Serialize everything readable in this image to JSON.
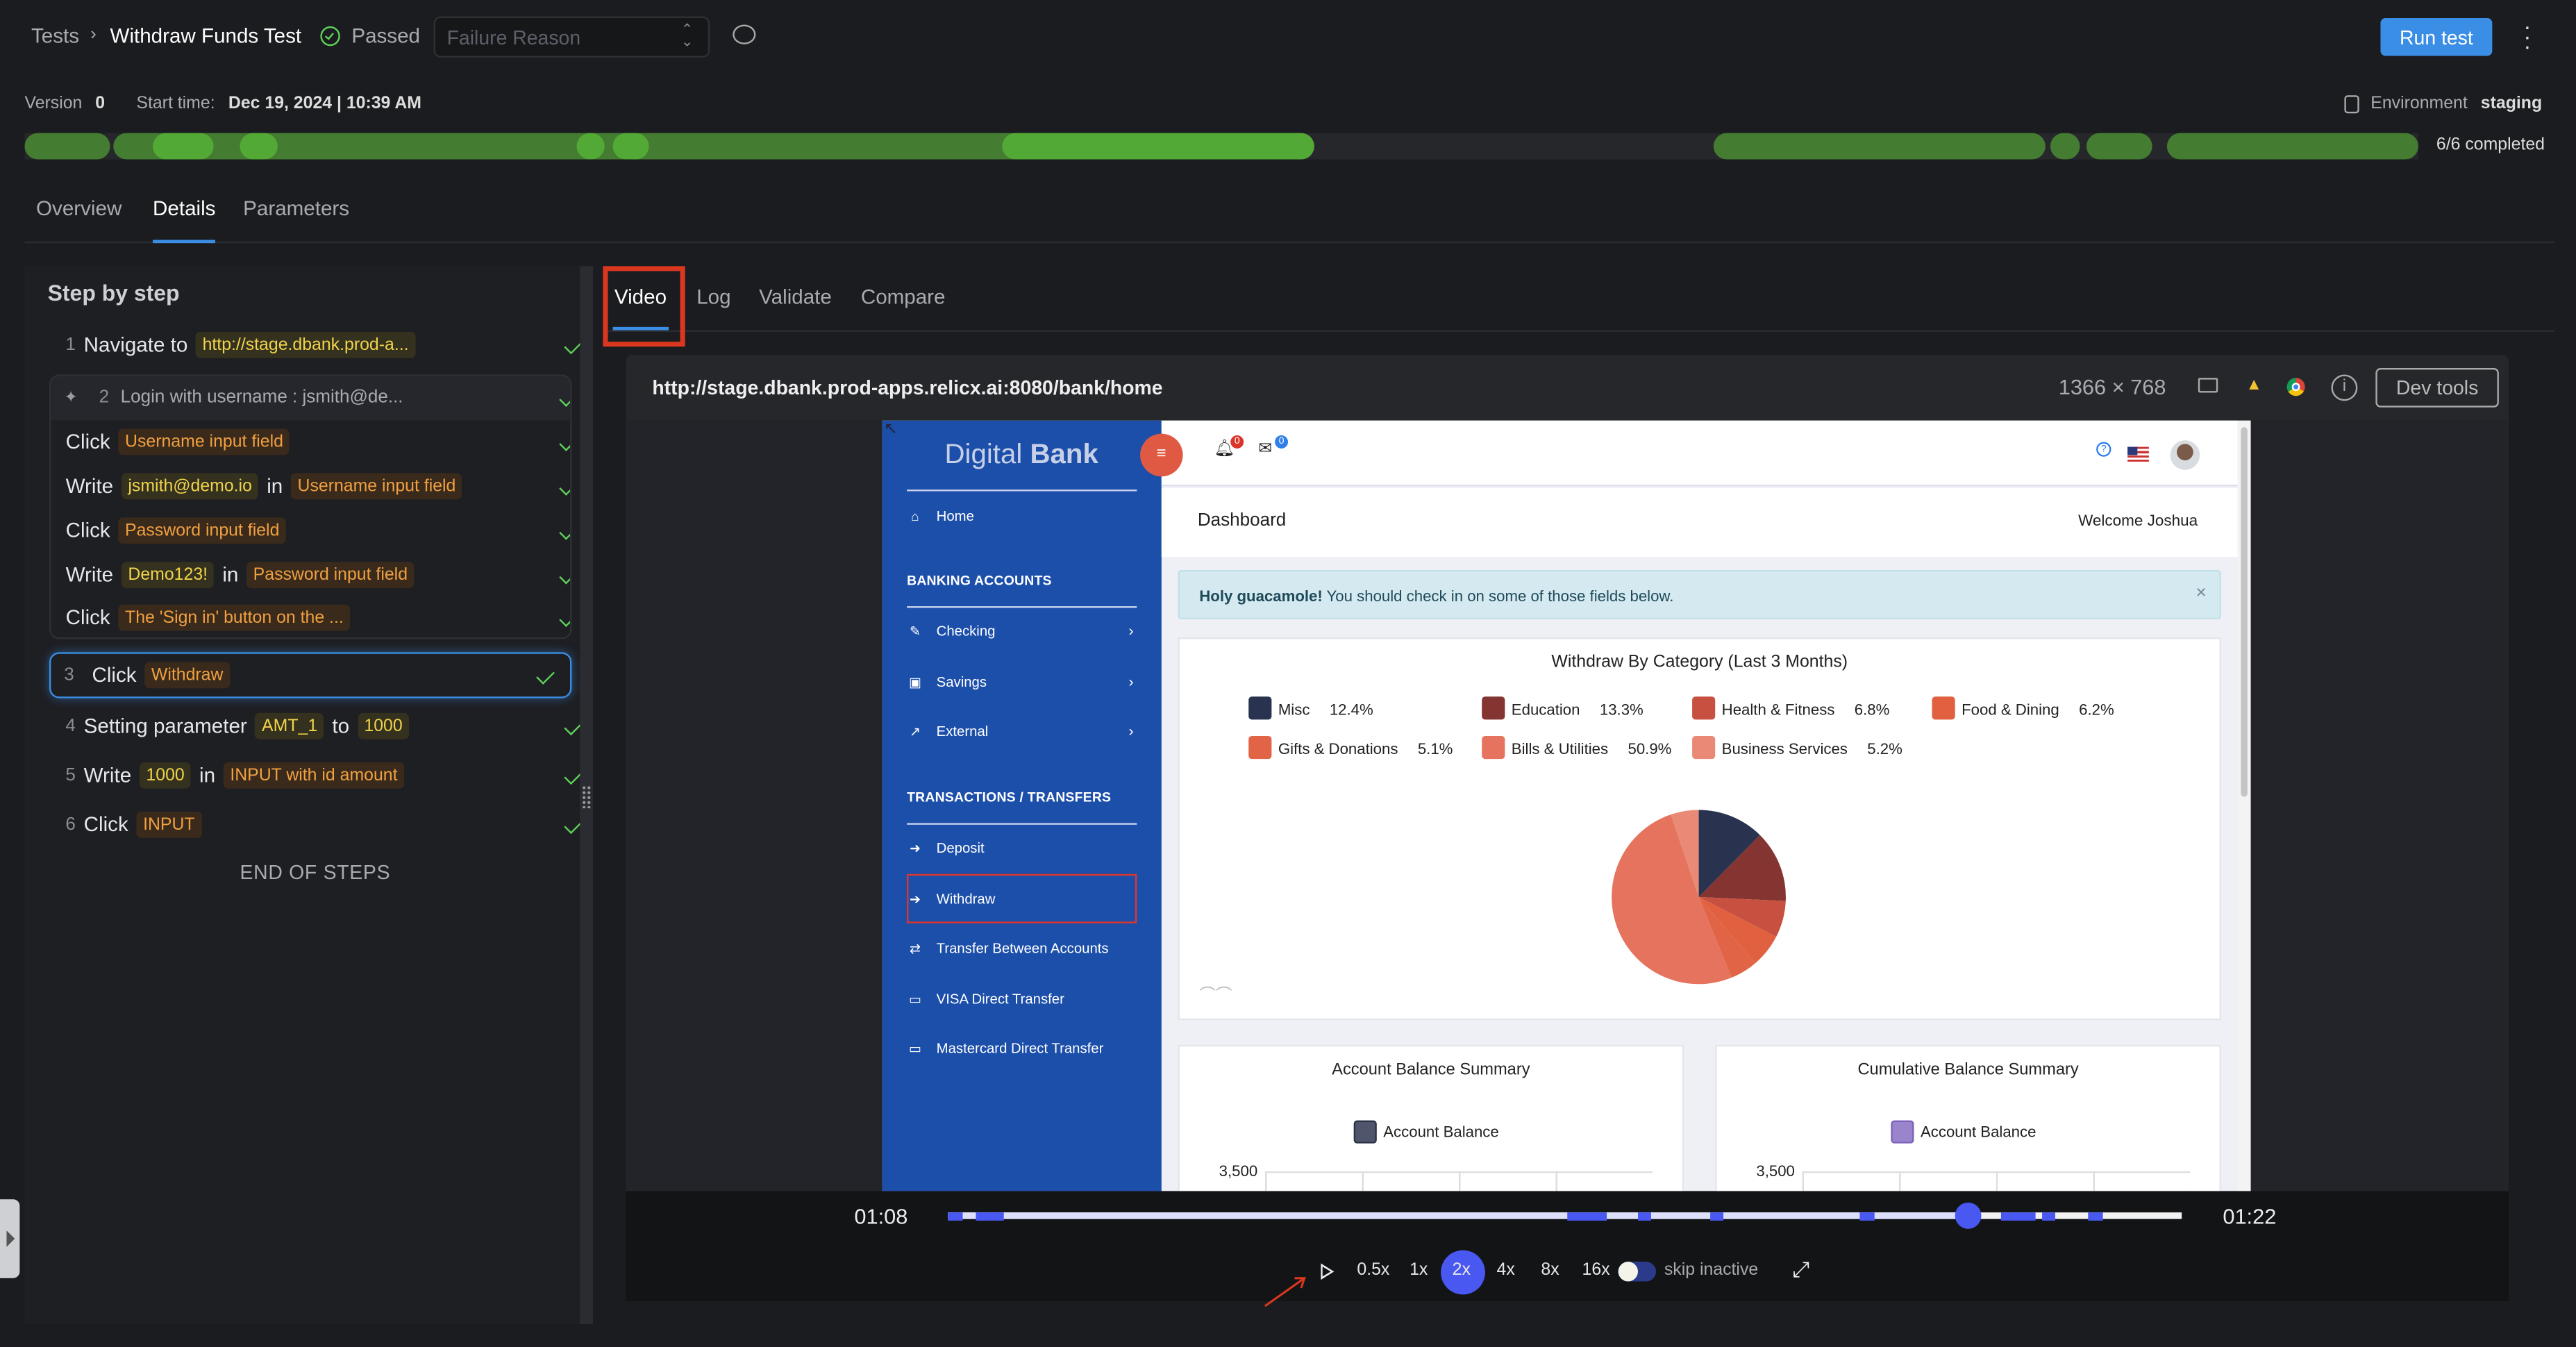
{
  "header": {
    "breadcrumb_root": "Tests",
    "test_name": "Withdraw Funds Test",
    "status": "Passed",
    "failure_reason_placeholder": "Failure Reason",
    "run_button": "Run test",
    "version_label": "Version",
    "version_value": "0",
    "start_label": "Start time:",
    "start_value": "Dec 19, 2024 | 10:39 AM",
    "environment_label": "Environment",
    "environment_value": "staging",
    "completed": "6/6 completed"
  },
  "main_tabs": [
    "Overview",
    "Details",
    "Parameters"
  ],
  "active_main_tab": "Details",
  "steps": {
    "title": "Step by step",
    "s1": {
      "num": "1",
      "verb": "Navigate to",
      "arg": "http://stage.dbank.prod-a..."
    },
    "s2": {
      "num": "2",
      "label": "Login with username : jsmith@de...",
      "sub": [
        {
          "verb": "Click",
          "target": "Username input field"
        },
        {
          "verb": "Write",
          "value": "jsmith@demo.io",
          "in": "in",
          "target": "Username input field"
        },
        {
          "verb": "Click",
          "target": "Password input field"
        },
        {
          "verb": "Write",
          "value": "Demo123!",
          "in": "in",
          "target": "Password input field"
        },
        {
          "verb": "Click",
          "target": "The 'Sign in' button on the ..."
        }
      ]
    },
    "s3": {
      "num": "3",
      "verb": "Click",
      "target": "Withdraw"
    },
    "s4": {
      "num": "4",
      "verb": "Setting parameter",
      "param": "AMT_1",
      "to": "to",
      "value": "1000"
    },
    "s5": {
      "num": "5",
      "verb": "Write",
      "value": "1000",
      "in": "in",
      "target": "INPUT with id amount"
    },
    "s6": {
      "num": "6",
      "verb": "Click",
      "target": "INPUT"
    },
    "end": "END OF STEPS"
  },
  "viewer_tabs": [
    "Video",
    "Log",
    "Validate",
    "Compare"
  ],
  "active_viewer_tab": "Video",
  "browser": {
    "url": "http://stage.dbank.prod-apps.relicx.ai:8080/bank/home",
    "resolution": "1366 × 768",
    "devtools": "Dev tools"
  },
  "app": {
    "logo_light": "Digital",
    "logo_bold": "Bank",
    "bell_count": "0",
    "mail_count": "0",
    "sidebar": {
      "home": "Home",
      "banking_heading": "BANKING ACCOUNTS",
      "checking": "Checking",
      "savings": "Savings",
      "external": "External",
      "transactions_heading": "TRANSACTIONS / TRANSFERS",
      "deposit": "Deposit",
      "withdraw": "Withdraw",
      "transfer": "Transfer Between Accounts",
      "visa": "VISA Direct Transfer",
      "mastercard": "Mastercard Direct Transfer"
    },
    "page_title": "Dashboard",
    "welcome": "Welcome Joshua",
    "alert_bold": "Holy guacamole!",
    "alert_text": "You should check in on some of those fields below.",
    "account_balance_title": "Account Balance Summary",
    "cumulative_title": "Cumulative Balance Summary",
    "balance_legend": "Account Balance",
    "balance_tick": "3,500",
    "balance_colors": {
      "account": "#4f566b",
      "cumulative": "#9a84cc"
    }
  },
  "chart_data": {
    "type": "pie",
    "title": "Withdraw By Category (Last 3 Months)",
    "legend_placement": "top",
    "slices": [
      {
        "label": "Misc",
        "value": 12.4,
        "display": "12.4%",
        "color": "#29334f"
      },
      {
        "label": "Education",
        "value": 13.3,
        "display": "13.3%",
        "color": "#843431"
      },
      {
        "label": "Health & Fitness",
        "value": 6.8,
        "display": "6.8%",
        "color": "#c75040"
      },
      {
        "label": "Food & Dining",
        "value": 6.2,
        "display": "6.2%",
        "color": "#e0603f"
      },
      {
        "label": "Gifts & Donations",
        "value": 5.1,
        "display": "5.1%",
        "color": "#e26446"
      },
      {
        "label": "Bills & Utilities",
        "value": 50.9,
        "display": "50.9%",
        "color": "#e5735d"
      },
      {
        "label": "Business Services",
        "value": 5.2,
        "display": "5.2%",
        "color": "#e88a75"
      }
    ]
  },
  "player": {
    "current": "01:08",
    "total": "01:22",
    "progress": 0.827,
    "speeds": [
      "0.5x",
      "1x",
      "2x",
      "4x",
      "8x",
      "16x"
    ],
    "active_speed": "2x",
    "skip_label": "skip inactive",
    "skip_inactive": false
  },
  "colors": {
    "accent": "#3a8ee6",
    "pass": "#5fd35a",
    "progress_dark": "#447c31",
    "progress_light": "#53a935",
    "bank_blue": "#1c4faa",
    "highlight_red": "#d9371f",
    "player_blue": "#4858f0"
  }
}
